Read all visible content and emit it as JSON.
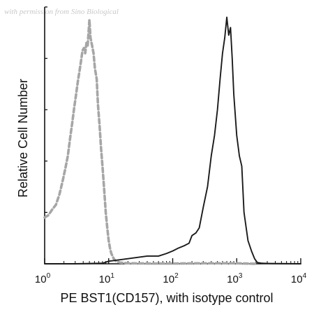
{
  "watermark": "with permission from Sino Biological",
  "chart_data": {
    "type": "line",
    "title": "",
    "xlabel": "PE BST1(CD157), with isotype control",
    "ylabel": "Relative Cell Number",
    "x_scale": "log",
    "xlim": [
      1,
      10000
    ],
    "ylim": [
      0,
      100
    ],
    "grid": false,
    "legend": "none",
    "x_ticks": [
      {
        "base": "10",
        "exp": "0",
        "value": 1
      },
      {
        "base": "10",
        "exp": "1",
        "value": 10
      },
      {
        "base": "10",
        "exp": "2",
        "value": 100
      },
      {
        "base": "10",
        "exp": "3",
        "value": 1000
      },
      {
        "base": "10",
        "exp": "4",
        "value": 10000
      }
    ],
    "series": [
      {
        "style": "dashed",
        "color": "#a6a6a6",
        "points": [
          [
            1.0,
            18
          ],
          [
            1.15,
            19
          ],
          [
            1.3,
            21
          ],
          [
            1.5,
            23
          ],
          [
            1.7,
            27
          ],
          [
            1.9,
            32
          ],
          [
            2.1,
            37
          ],
          [
            2.3,
            42
          ],
          [
            2.5,
            49
          ],
          [
            2.7,
            55
          ],
          [
            2.9,
            61
          ],
          [
            3.1,
            66
          ],
          [
            3.3,
            71
          ],
          [
            3.5,
            75
          ],
          [
            3.7,
            79
          ],
          [
            3.9,
            83
          ],
          [
            4.1,
            84
          ],
          [
            4.3,
            82
          ],
          [
            4.5,
            86
          ],
          [
            4.7,
            85
          ],
          [
            5.0,
            95
          ],
          [
            5.2,
            88
          ],
          [
            5.5,
            85
          ],
          [
            5.8,
            82
          ],
          [
            6.1,
            76
          ],
          [
            6.5,
            72
          ],
          [
            6.8,
            62
          ],
          [
            7.2,
            54
          ],
          [
            7.6,
            45
          ],
          [
            8.0,
            38
          ],
          [
            8.5,
            29
          ],
          [
            9.0,
            20
          ],
          [
            9.5,
            14
          ],
          [
            10.0,
            9
          ],
          [
            10.5,
            6
          ],
          [
            11.0,
            4
          ],
          [
            12.0,
            2
          ],
          [
            13.0,
            1
          ],
          [
            15.0,
            0.5
          ],
          [
            20.0,
            0.2
          ],
          [
            50.0,
            0.1
          ],
          [
            100.0,
            0.1
          ],
          [
            300.0,
            0.2
          ],
          [
            1000.0,
            0.2
          ],
          [
            2000.0,
            0
          ]
        ]
      },
      {
        "style": "solid",
        "color": "#1a1a1a",
        "points": [
          [
            1.0,
            0
          ],
          [
            3.0,
            0
          ],
          [
            8.0,
            0.2
          ],
          [
            10.0,
            1
          ],
          [
            20.0,
            2
          ],
          [
            40.0,
            3
          ],
          [
            60.0,
            3
          ],
          [
            80.0,
            4
          ],
          [
            100.0,
            5
          ],
          [
            120.0,
            6
          ],
          [
            150.0,
            7
          ],
          [
            180.0,
            8
          ],
          [
            200.0,
            11
          ],
          [
            230.0,
            12
          ],
          [
            260.0,
            14
          ],
          [
            300.0,
            22
          ],
          [
            350.0,
            30
          ],
          [
            400.0,
            42
          ],
          [
            450.0,
            50
          ],
          [
            500.0,
            60
          ],
          [
            550.0,
            72
          ],
          [
            600.0,
            82
          ],
          [
            650.0,
            88
          ],
          [
            700.0,
            96
          ],
          [
            750.0,
            89
          ],
          [
            800.0,
            92
          ],
          [
            850.0,
            80
          ],
          [
            900.0,
            66
          ],
          [
            1000.0,
            50
          ],
          [
            1100.0,
            42
          ],
          [
            1200.0,
            38
          ],
          [
            1300.0,
            20
          ],
          [
            1500.0,
            9
          ],
          [
            1700.0,
            5
          ],
          [
            1900.0,
            2
          ],
          [
            2100.0,
            0.5
          ],
          [
            2500.0,
            0.2
          ],
          [
            3500.0,
            0.1
          ],
          [
            10000.0,
            0
          ]
        ]
      }
    ]
  }
}
